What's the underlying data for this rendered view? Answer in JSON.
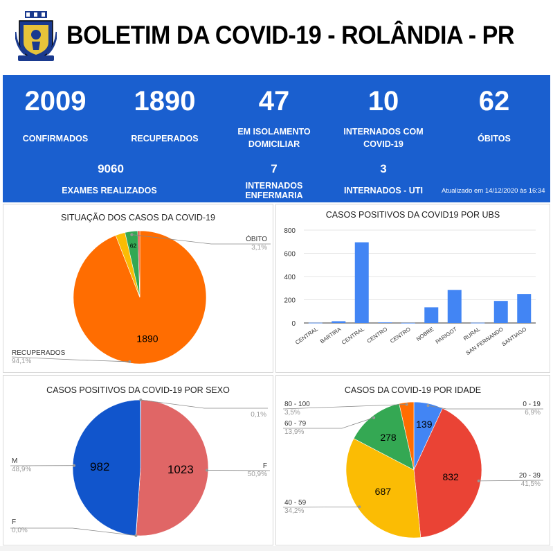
{
  "header": {
    "title": "BOLETIM DA COVID-19 - ROLÂNDIA - PR"
  },
  "stats": {
    "confirmados": {
      "value": "2009",
      "label": "CONFIRMADOS"
    },
    "recuperados": {
      "value": "1890",
      "label": "RECUPERADOS"
    },
    "isolamento": {
      "value": "47",
      "label1": "EM ISOLAMENTO",
      "label2": "DOMICILIAR"
    },
    "internados_covid": {
      "value": "10",
      "label1": "INTERNADOS COM",
      "label2": "COVID-19"
    },
    "obitos": {
      "value": "62",
      "label": "ÓBITOS"
    },
    "exames": {
      "value": "9060",
      "label": "EXAMES REALIZADOS"
    },
    "internados_enfermaria": {
      "value": "7",
      "label1": "INTERNADOS",
      "label2": "ENFERMARIA"
    },
    "internados_uti": {
      "value": "3",
      "label": "INTERNADOS - UTI"
    },
    "updated": "Atualizado em 14/12/2020 às 16:34"
  },
  "chart_data": [
    {
      "type": "pie",
      "title": "SITUAÇÃO DOS CASOS DA COVID-19",
      "slices": [
        {
          "label": "RECUPERADOS",
          "value": 1890,
          "percent": "94,1%",
          "color": "#ff6d01"
        },
        {
          "label": "",
          "value": 47,
          "percent": "",
          "color": "#fbbc04"
        },
        {
          "label": "ÓBITO",
          "value": 62,
          "percent": "3,1%",
          "color": "#34a853"
        },
        {
          "label": "",
          "value": 10,
          "percent": "",
          "color": "#ea4335"
        }
      ]
    },
    {
      "type": "bar",
      "title": "CASOS POSITIVOS DA COVID19 POR UBS",
      "categories": [
        "CENTRAL",
        "BARTIRA",
        "CENTRAL",
        "CENTRO",
        "CENTRO",
        "NOBRE",
        "PARIGOT",
        "RURAL",
        "SAN FERNANDO",
        "SANTIAGO"
      ],
      "values": [
        2,
        15,
        695,
        5,
        1,
        135,
        285,
        2,
        190,
        250
      ],
      "ylim": [
        0,
        800
      ],
      "yticks": [
        "0",
        "200",
        "400",
        "600",
        "800"
      ],
      "color": "#4285f4"
    },
    {
      "type": "pie",
      "title": "CASOS POSITIVOS DA COVID-19 POR SEXO",
      "slices": [
        {
          "label": "",
          "value": 2,
          "percent": "0,1%",
          "color": "#fbbc04"
        },
        {
          "label": "F",
          "value": 1023,
          "percent": "50,9%",
          "color": "#e06666"
        },
        {
          "label": "F",
          "value": 1,
          "percent": "0,0%",
          "color": "#ea4335"
        },
        {
          "label": "M",
          "value": 982,
          "percent": "48,9%",
          "color": "#1155cc"
        }
      ]
    },
    {
      "type": "pie",
      "title": "CASOS DA COVID-19 POR IDADE",
      "slices": [
        {
          "label": "0 - 19",
          "value": 139,
          "percent": "6,9%",
          "color": "#4285f4"
        },
        {
          "label": "20 - 39",
          "value": 832,
          "percent": "41,5%",
          "color": "#ea4335"
        },
        {
          "label": "40 - 59",
          "value": 687,
          "percent": "34,2%",
          "color": "#fbbc04"
        },
        {
          "label": "60 - 79",
          "value": 278,
          "percent": "13,9%",
          "color": "#34a853"
        },
        {
          "label": "80 - 100",
          "value": 70,
          "percent": "3,5%",
          "color": "#ff6d01"
        }
      ]
    }
  ]
}
